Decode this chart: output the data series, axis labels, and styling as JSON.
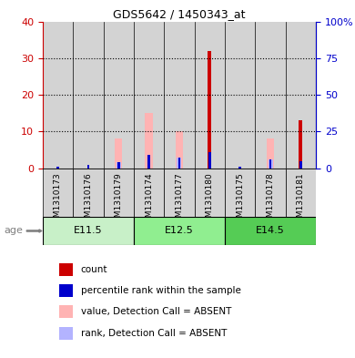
{
  "title": "GDS5642 / 1450343_at",
  "samples": [
    "GSM1310173",
    "GSM1310176",
    "GSM1310179",
    "GSM1310174",
    "GSM1310177",
    "GSM1310180",
    "GSM1310175",
    "GSM1310178",
    "GSM1310181"
  ],
  "age_groups": [
    {
      "label": "E11.5",
      "start": 0,
      "end": 3,
      "color": "#c8f0c8"
    },
    {
      "label": "E12.5",
      "start": 3,
      "end": 6,
      "color": "#90ee90"
    },
    {
      "label": "E14.5",
      "start": 6,
      "end": 9,
      "color": "#55cc55"
    }
  ],
  "count_values": [
    0,
    0,
    0,
    0,
    0,
    32,
    0,
    0,
    13
  ],
  "percentile_values": [
    1,
    2,
    4,
    9,
    7,
    11,
    1,
    6,
    5
  ],
  "absent_value_values": [
    0,
    0,
    8,
    15,
    10,
    0,
    0,
    8,
    0
  ],
  "absent_rank_values": [
    0,
    0,
    4,
    0,
    7,
    0,
    0,
    6,
    0
  ],
  "left_ylim": [
    0,
    40
  ],
  "right_ylim": [
    0,
    100
  ],
  "left_yticks": [
    0,
    10,
    20,
    30,
    40
  ],
  "right_yticks": [
    0,
    25,
    50,
    75,
    100
  ],
  "right_yticklabels": [
    "0",
    "25",
    "50",
    "75",
    "100%"
  ],
  "count_color": "#cc0000",
  "percentile_color": "#0000cc",
  "absent_value_color": "#ffb3b3",
  "absent_rank_color": "#b3b3ff",
  "bg_color": "#d3d3d3",
  "left_tick_color": "#cc0000",
  "right_tick_color": "#0000cc",
  "count_bar_width": 0.12,
  "percentile_bar_width": 0.08,
  "absent_value_bar_width": 0.25,
  "absent_rank_bar_width": 0.15
}
